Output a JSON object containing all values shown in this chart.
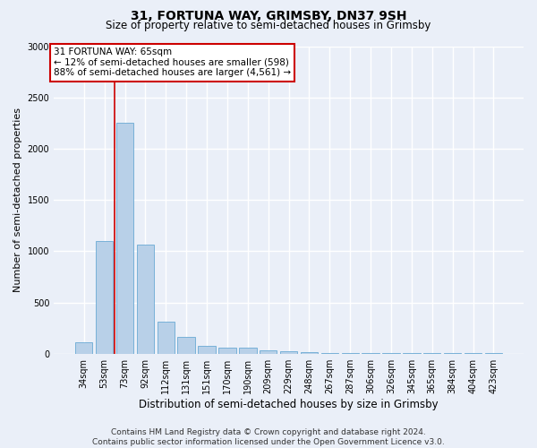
{
  "title": "31, FORTUNA WAY, GRIMSBY, DN37 9SH",
  "subtitle": "Size of property relative to semi-detached houses in Grimsby",
  "xlabel": "Distribution of semi-detached houses by size in Grimsby",
  "ylabel": "Number of semi-detached properties",
  "categories": [
    "34sqm",
    "53sqm",
    "73sqm",
    "92sqm",
    "112sqm",
    "131sqm",
    "151sqm",
    "170sqm",
    "190sqm",
    "209sqm",
    "229sqm",
    "248sqm",
    "267sqm",
    "287sqm",
    "306sqm",
    "326sqm",
    "345sqm",
    "365sqm",
    "384sqm",
    "404sqm",
    "423sqm"
  ],
  "values": [
    110,
    1100,
    2250,
    1060,
    310,
    160,
    80,
    60,
    55,
    35,
    25,
    15,
    10,
    5,
    5,
    5,
    3,
    3,
    3,
    2,
    2
  ],
  "bar_color": "#b8d0e8",
  "bar_edge_color": "#6aaad4",
  "vline_color": "#cc0000",
  "vline_pos": 1.5,
  "annotation_text": "31 FORTUNA WAY: 65sqm\n← 12% of semi-detached houses are smaller (598)\n88% of semi-detached houses are larger (4,561) →",
  "annotation_box_facecolor": "#ffffff",
  "annotation_box_edgecolor": "#cc0000",
  "ylim": [
    0,
    3000
  ],
  "yticks": [
    0,
    500,
    1000,
    1500,
    2000,
    2500,
    3000
  ],
  "footer": "Contains HM Land Registry data © Crown copyright and database right 2024.\nContains public sector information licensed under the Open Government Licence v3.0.",
  "bg_color": "#eaeff8",
  "grid_color": "#ffffff",
  "title_fontsize": 10,
  "subtitle_fontsize": 8.5,
  "ylabel_fontsize": 8,
  "xlabel_fontsize": 8.5,
  "tick_fontsize": 7,
  "footer_fontsize": 6.5,
  "annotation_fontsize": 7.5
}
